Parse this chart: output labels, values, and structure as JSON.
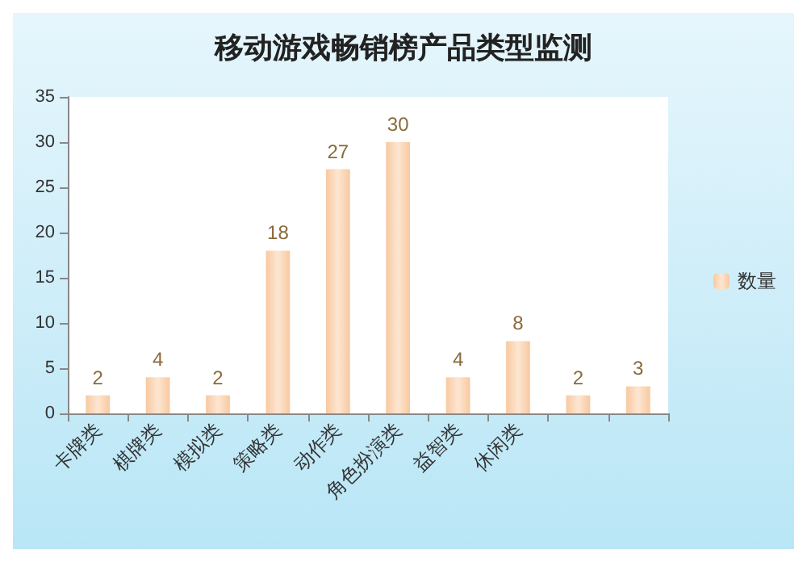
{
  "chart_data": {
    "type": "bar",
    "title": "移动游戏畅销榜产品类型监测",
    "categories": [
      "卡牌类",
      "棋牌类",
      "模拟类",
      "策略类",
      "动作类",
      "角色扮演类",
      "益智类",
      "休闲类",
      null,
      null
    ],
    "series": [
      {
        "name": "数量",
        "color": "#f8c9a0",
        "values": [
          2,
          4,
          2,
          18,
          27,
          30,
          4,
          8,
          2,
          3
        ]
      }
    ],
    "ylim": [
      0,
      35
    ],
    "yticks": [
      0,
      5,
      10,
      15,
      20,
      25,
      30,
      35
    ],
    "grid": false,
    "legend": "right",
    "data_labels": true
  }
}
